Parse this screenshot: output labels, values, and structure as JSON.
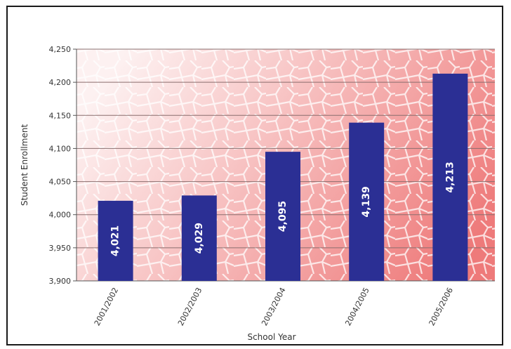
{
  "chart_data": {
    "type": "bar",
    "title": "",
    "xlabel": "School Year",
    "ylabel": "Student Enrollment",
    "categories": [
      "2001/2002",
      "2002/2003",
      "2003/2004",
      "2004/2005",
      "2005/2006"
    ],
    "values": [
      4021,
      4029,
      4095,
      4139,
      4213
    ],
    "data_labels": [
      "4,021",
      "4,029",
      "4,095",
      "4,139",
      "4,213"
    ],
    "ylim": [
      3900,
      4250
    ],
    "yticks": [
      3900,
      3950,
      4000,
      4050,
      4100,
      4150,
      4200,
      4250
    ],
    "ytick_labels": [
      "3,900",
      "3,950",
      "4,000",
      "4,050",
      "4,100",
      "4,150",
      "4,200",
      "4,250"
    ],
    "grid": true,
    "legend": "none"
  },
  "colors": {
    "bar": "#2b2f94",
    "gridline": "#8a6e6e",
    "plot_bg_light": "#fdf1f1",
    "plot_bg_dark": "#ee7a7a",
    "frame": "#1a1a1a"
  }
}
